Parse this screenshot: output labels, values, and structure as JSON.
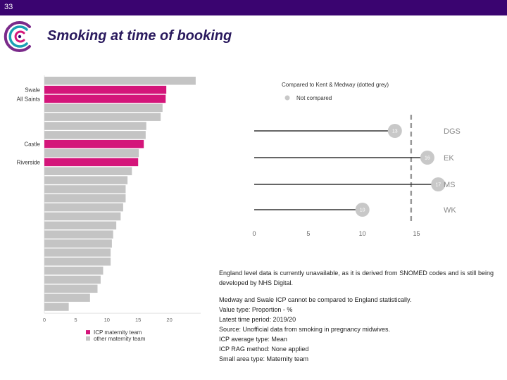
{
  "slide_number": "33",
  "title": "Smoking at time of booking",
  "colors": {
    "header_bar": "#3a0470",
    "icp": "#d4157a",
    "other": "#c4c4c4",
    "line": "#333333",
    "dot": "#c8c8c8",
    "title": "#2a1a5e"
  },
  "logo": {
    "icon": "concentric-c-logo"
  },
  "chart_data": [
    {
      "type": "bar",
      "orientation": "horizontal",
      "categories": [
        "",
        "Swale",
        "All Saints",
        "",
        "",
        "",
        "",
        "Castle",
        "",
        "Riverside",
        "",
        "",
        "",
        "",
        "",
        "",
        "",
        "",
        "",
        "",
        "",
        "",
        "",
        "",
        "",
        ""
      ],
      "values": [
        24.2,
        19.5,
        19.4,
        18.9,
        18.6,
        16.3,
        16.2,
        15.9,
        15.1,
        15.0,
        14.0,
        13.3,
        13.0,
        13.0,
        12.6,
        12.2,
        11.5,
        11.0,
        10.8,
        10.6,
        10.6,
        9.4,
        9.0,
        8.5,
        7.3,
        3.9
      ],
      "group": [
        "other",
        "icp",
        "icp",
        "other",
        "other",
        "other",
        "other",
        "icp",
        "other",
        "icp",
        "other",
        "other",
        "other",
        "other",
        "other",
        "other",
        "other",
        "other",
        "other",
        "other",
        "other",
        "other",
        "other",
        "other",
        "other",
        "other"
      ],
      "x_ticks": [
        "0",
        "5",
        "10",
        "15",
        "20"
      ],
      "xlim": [
        0,
        25
      ],
      "legend": [
        {
          "label": "ICP maternity team",
          "group": "icp"
        },
        {
          "label": "other maternity team",
          "group": "other"
        }
      ],
      "legend_position": "bottom"
    },
    {
      "type": "scatter",
      "title": "Compared to Kent & Medway (dotted grey)",
      "legend": [
        {
          "label": "Not compared"
        }
      ],
      "legend_position": "top",
      "categories": [
        "DGS",
        "EK",
        "MS",
        "WK"
      ],
      "values": [
        13,
        16,
        17,
        10
      ],
      "value_labels": [
        "13",
        "16",
        "17",
        "10"
      ],
      "reference_value": 14.5,
      "x_ticks": [
        "0",
        "5",
        "10",
        "15"
      ],
      "xlim": [
        0,
        19
      ]
    }
  ],
  "notes": {
    "intro": "England level data is currently unavailable, as it is derived from SNOMED codes and is still being developed by NHS Digital.",
    "lines": [
      "Medway and Swale ICP cannot be compared to England statistically.",
      "Value type: Proportion - %",
      "Latest time period: 2019/20",
      "Source: Unofficial data from smoking in pregnancy midwives.",
      "ICP average type: Mean",
      "ICP RAG method: None applied",
      "Small area type: Maternity team"
    ]
  }
}
